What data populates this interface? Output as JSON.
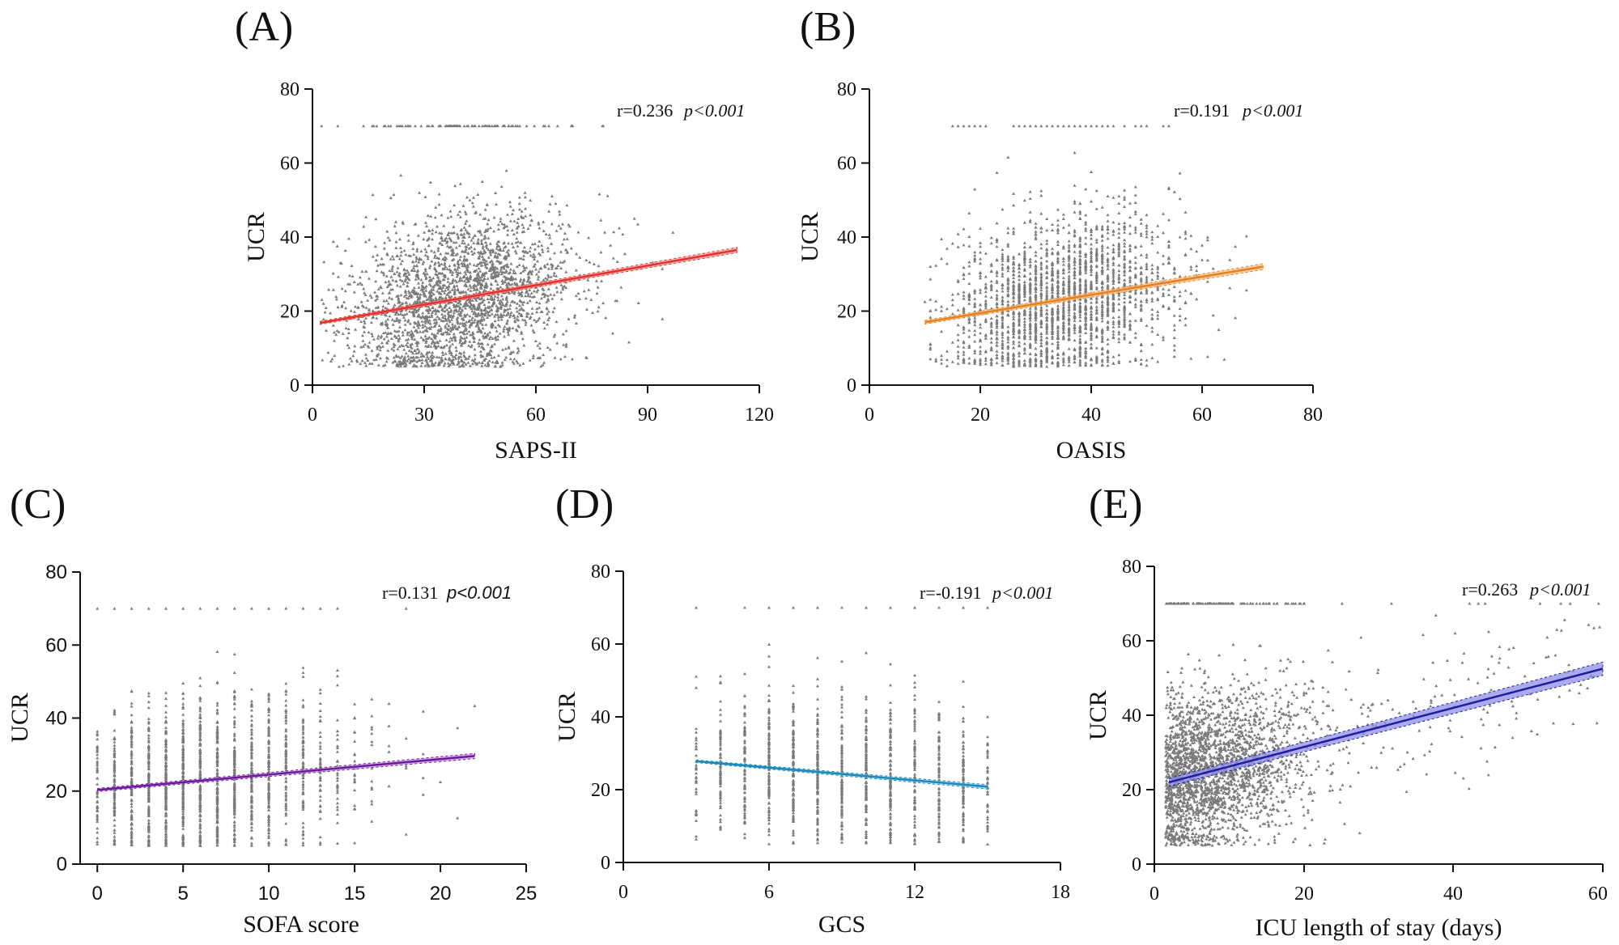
{
  "chart_data": [
    {
      "type": "scatter",
      "panel": "(A)",
      "xlabel": "SAPS-II",
      "ylabel": "UCR",
      "xlim": [
        0,
        120
      ],
      "ylim": [
        0,
        80
      ],
      "xticks": [
        "0",
        "30",
        "60",
        "90",
        "120"
      ],
      "yticks": [
        "0",
        "20",
        "40",
        "60",
        "80"
      ],
      "r_label": "r=0.236",
      "p_label": "p<0.001",
      "fit": {
        "x": [
          2,
          114
        ],
        "y": [
          16.8,
          36.5
        ]
      },
      "ci_halfwidth": 0.7,
      "line_color": "#e8302a",
      "band_color": "#f4a09c",
      "cloud": {
        "x_center": 40,
        "x_sd": 15,
        "x_min": 2,
        "x_max": 114,
        "y_min": 5,
        "y_max": 70,
        "cap": 70,
        "n": 2600,
        "discrete_x": false
      }
    },
    {
      "type": "scatter",
      "panel": "(B)",
      "xlabel": "OASIS",
      "ylabel": "UCR",
      "xlim": [
        0,
        80
      ],
      "ylim": [
        0,
        80
      ],
      "xticks": [
        "0",
        "20",
        "40",
        "60",
        "80"
      ],
      "yticks": [
        "0",
        "20",
        "40",
        "60",
        "80"
      ],
      "r_label": "r=0.191",
      "p_label": "p<0.001",
      "fit": {
        "x": [
          10,
          71
        ],
        "y": [
          17,
          32
        ]
      },
      "ci_halfwidth": 0.8,
      "line_color": "#e8801e",
      "band_color": "#f6c08a",
      "cloud": {
        "x_center": 35,
        "x_sd": 10,
        "x_min": 10,
        "x_max": 71,
        "y_min": 5,
        "y_max": 70,
        "cap": 70,
        "n": 2400,
        "discrete_x": true,
        "x_step": 1
      }
    },
    {
      "type": "scatter",
      "panel": "(C)",
      "xlabel": "SOFA score",
      "ylabel": "UCR",
      "xlim": [
        -1,
        25
      ],
      "ylim": [
        0,
        80
      ],
      "xticks": [
        "0",
        "5",
        "10",
        "15",
        "20",
        "25"
      ],
      "yticks": [
        "0",
        "20",
        "40",
        "60",
        "80"
      ],
      "r_label": "r=0.131",
      "p_label": "p<0.001",
      "fit": {
        "x": [
          0,
          22
        ],
        "y": [
          20.3,
          29.6
        ]
      },
      "ci_halfwidth": 0.7,
      "line_color": "#6a1a9a",
      "band_color": "#c79ae0",
      "cloud": {
        "x_center": 6,
        "x_sd": 4.5,
        "x_min": 0,
        "x_max": 22,
        "y_min": 5,
        "y_max": 70,
        "cap": 70,
        "n": 2000,
        "discrete_x": true,
        "x_step": 1
      }
    },
    {
      "type": "scatter",
      "panel": "(D)",
      "xlabel": "GCS",
      "ylabel": "UCR",
      "xlim": [
        0,
        18
      ],
      "ylim": [
        0,
        80
      ],
      "xticks": [
        "0",
        "6",
        "12",
        "18"
      ],
      "yticks": [
        "0",
        "20",
        "40",
        "60",
        "80"
      ],
      "r_label": "r=-0.191",
      "p_label": "p<0.001",
      "fit": {
        "x": [
          3,
          15
        ],
        "y": [
          27.8,
          20.8
        ]
      },
      "ci_halfwidth": 0.6,
      "line_color": "#1a8ab8",
      "band_color": "#9ccfe6",
      "cloud": {
        "x_center": 9,
        "x_sd": 6,
        "x_min": 3,
        "x_max": 15,
        "y_min": 5,
        "y_max": 70,
        "cap": 70,
        "n": 1800,
        "discrete_x": true,
        "x_step": 1
      }
    },
    {
      "type": "scatter",
      "panel": "(E)",
      "xlabel": "ICU length of stay (days)",
      "ylabel": "UCR",
      "xlim": [
        0,
        60
      ],
      "ylim": [
        0,
        80
      ],
      "xticks": [
        "0",
        "20",
        "40",
        "60"
      ],
      "yticks": [
        "0",
        "20",
        "40",
        "60",
        "80"
      ],
      "r_label": "r=0.263",
      "p_label": "p<0.001",
      "fit": {
        "x": [
          2,
          60
        ],
        "y": [
          22,
          52.5
        ]
      },
      "ci_halfwidth": 1.8,
      "line_color": "#1f1f9e",
      "band_color": "#8e8ee6",
      "cloud": {
        "x_center": 2,
        "x_sd": 9,
        "x_min": 1.5,
        "x_max": 60,
        "y_min": 5,
        "y_max": 70,
        "cap": 70,
        "n": 2600,
        "discrete_x": false,
        "skew": true
      }
    }
  ]
}
